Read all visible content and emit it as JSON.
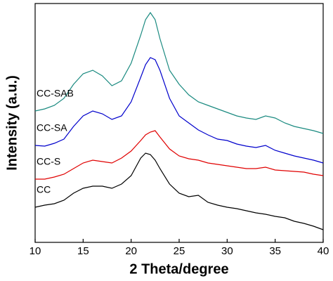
{
  "chart_data": {
    "type": "line",
    "xlabel": "2 Theta/degree",
    "ylabel": "Intensity (a.u.)",
    "x": [
      10,
      11,
      12,
      13,
      14,
      15,
      16,
      17,
      18,
      19,
      20,
      21,
      21.5,
      22,
      22.5,
      23,
      24,
      25,
      26,
      27,
      28,
      29,
      30,
      31,
      32,
      33,
      34,
      35,
      36,
      37,
      38,
      39,
      40
    ],
    "xlim": [
      10,
      40
    ],
    "xticks": [
      10,
      15,
      20,
      25,
      30,
      35,
      40
    ],
    "ylim": [
      0,
      340
    ],
    "series": [
      {
        "name": "CC",
        "color": "#000000",
        "values": [
          50,
          53,
          55,
          60,
          70,
          77,
          80,
          80,
          77,
          83,
          95,
          120,
          127,
          125,
          117,
          105,
          83,
          70,
          65,
          67,
          57,
          53,
          50,
          48,
          45,
          42,
          40,
          37,
          35,
          30,
          27,
          23,
          18
        ]
      },
      {
        "name": "CC-S",
        "color": "#e00000",
        "values": [
          90,
          90,
          93,
          97,
          105,
          113,
          117,
          115,
          113,
          120,
          130,
          145,
          153,
          157,
          159,
          150,
          133,
          123,
          119,
          117,
          113,
          111,
          109,
          107,
          105,
          105,
          107,
          103,
          102,
          101,
          100,
          97,
          95
        ]
      },
      {
        "name": "CC-SA",
        "color": "#0000cc",
        "values": [
          138,
          137,
          141,
          147,
          165,
          180,
          187,
          183,
          175,
          180,
          200,
          235,
          253,
          263,
          260,
          245,
          205,
          180,
          170,
          160,
          153,
          147,
          145,
          140,
          137,
          135,
          138,
          131,
          127,
          123,
          120,
          117,
          113
        ]
      },
      {
        "name": "CC-SAB",
        "color": "#1a8a80",
        "values": [
          187,
          190,
          195,
          205,
          225,
          240,
          245,
          237,
          223,
          230,
          255,
          295,
          317,
          327,
          317,
          290,
          245,
          225,
          210,
          200,
          195,
          190,
          185,
          180,
          177,
          175,
          180,
          177,
          170,
          165,
          162,
          159,
          155
        ]
      }
    ]
  }
}
